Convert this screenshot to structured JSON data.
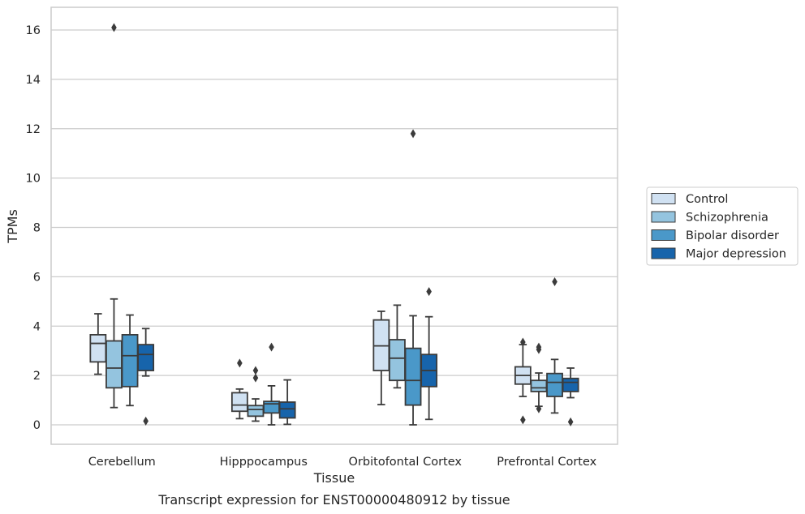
{
  "chart_data": {
    "type": "box",
    "caption": "Transcript expression for ENST00000480912 by tissue",
    "xlabel": "Tissue",
    "ylabel": "TPMs",
    "ylim": [
      -0.8,
      16.9
    ],
    "yticks": [
      0,
      2,
      4,
      6,
      8,
      10,
      12,
      14,
      16
    ],
    "grid": true,
    "legend_position": "right",
    "categories": [
      "Cerebellum",
      "Hipppocampus",
      "Orbitofontal Cortex",
      "Prefrontal Cortex"
    ],
    "series": [
      {
        "name": "Control",
        "color": "#d0e1f2",
        "boxes": [
          {
            "whisker_low": 2.05,
            "q1": 2.55,
            "median": 3.3,
            "q3": 3.65,
            "whisker_high": 4.5,
            "outliers": []
          },
          {
            "whisker_low": 0.25,
            "q1": 0.55,
            "median": 0.8,
            "q3": 1.3,
            "whisker_high": 1.45,
            "outliers": [
              2.5
            ]
          },
          {
            "whisker_low": 0.82,
            "q1": 2.2,
            "median": 3.2,
            "q3": 4.25,
            "whisker_high": 4.6,
            "outliers": []
          },
          {
            "whisker_low": 1.15,
            "q1": 1.65,
            "median": 2.0,
            "q3": 2.35,
            "whisker_high": 3.25,
            "outliers": [
              0.2,
              3.35
            ]
          }
        ]
      },
      {
        "name": "Schizophrenia",
        "color": "#94c4df",
        "boxes": [
          {
            "whisker_low": 0.7,
            "q1": 1.5,
            "median": 2.3,
            "q3": 3.4,
            "whisker_high": 5.1,
            "outliers": [
              16.1
            ]
          },
          {
            "whisker_low": 0.15,
            "q1": 0.35,
            "median": 0.62,
            "q3": 0.78,
            "whisker_high": 1.05,
            "outliers": [
              1.9,
              2.2
            ]
          },
          {
            "whisker_low": 1.5,
            "q1": 1.8,
            "median": 2.7,
            "q3": 3.45,
            "whisker_high": 4.85,
            "outliers": []
          },
          {
            "whisker_low": 0.75,
            "q1": 1.35,
            "median": 1.5,
            "q3": 1.8,
            "whisker_high": 2.1,
            "outliers": [
              0.65,
              3.05,
              3.15
            ]
          }
        ]
      },
      {
        "name": "Bipolar disorder",
        "color": "#4a98c9",
        "boxes": [
          {
            "whisker_low": 0.78,
            "q1": 1.55,
            "median": 2.8,
            "q3": 3.65,
            "whisker_high": 4.45,
            "outliers": []
          },
          {
            "whisker_low": 0.0,
            "q1": 0.48,
            "median": 0.85,
            "q3": 0.95,
            "whisker_high": 1.58,
            "outliers": [
              3.15
            ]
          },
          {
            "whisker_low": 0.0,
            "q1": 0.8,
            "median": 1.8,
            "q3": 3.1,
            "whisker_high": 4.42,
            "outliers": [
              11.8
            ]
          },
          {
            "whisker_low": 0.48,
            "q1": 1.15,
            "median": 1.72,
            "q3": 2.08,
            "whisker_high": 2.65,
            "outliers": [
              5.8
            ]
          }
        ]
      },
      {
        "name": "Major depression",
        "color": "#1764ab",
        "boxes": [
          {
            "whisker_low": 1.98,
            "q1": 2.2,
            "median": 2.85,
            "q3": 3.25,
            "whisker_high": 3.9,
            "outliers": [
              0.15
            ]
          },
          {
            "whisker_low": 0.02,
            "q1": 0.28,
            "median": 0.65,
            "q3": 0.92,
            "whisker_high": 1.82,
            "outliers": []
          },
          {
            "whisker_low": 0.22,
            "q1": 1.55,
            "median": 2.2,
            "q3": 2.85,
            "whisker_high": 4.38,
            "outliers": [
              5.4
            ]
          },
          {
            "whisker_low": 1.1,
            "q1": 1.35,
            "median": 1.72,
            "q3": 1.88,
            "whisker_high": 2.3,
            "outliers": [
              0.12
            ]
          }
        ]
      }
    ]
  }
}
